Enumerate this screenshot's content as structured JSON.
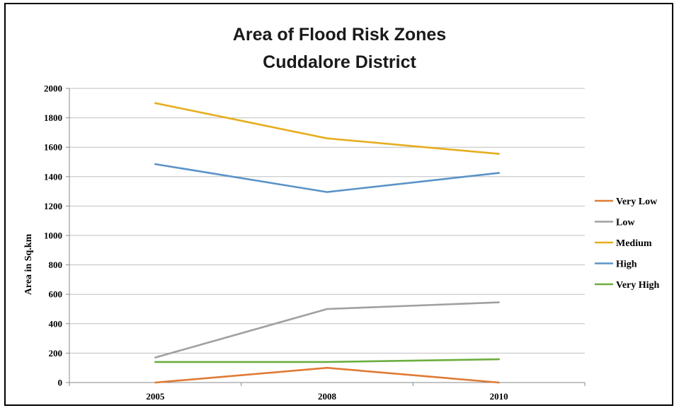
{
  "chart_data": {
    "type": "line",
    "title_lines": [
      "Area of Flood Risk Zones",
      "Cuddalore District"
    ],
    "xlabel": "",
    "ylabel": "Area in Sq.km",
    "categories": [
      "2005",
      "2008",
      "2010"
    ],
    "ylim": [
      0,
      2000
    ],
    "yticks": [
      0,
      200,
      400,
      600,
      800,
      1000,
      1200,
      1400,
      1600,
      1800,
      2000
    ],
    "grid": true,
    "legend_position": "right",
    "series": [
      {
        "name": "Very Low",
        "color": "#E07A35",
        "values": [
          0,
          100,
          0
        ]
      },
      {
        "name": "Low",
        "color": "#A0A0A0",
        "values": [
          170,
          500,
          545
        ]
      },
      {
        "name": "Medium",
        "color": "#E6AE1E",
        "values": [
          1900,
          1660,
          1555
        ]
      },
      {
        "name": "High",
        "color": "#5B93C8",
        "values": [
          1485,
          1295,
          1425
        ]
      },
      {
        "name": "Very High",
        "color": "#6BAE3E",
        "values": [
          140,
          140,
          158
        ]
      }
    ]
  }
}
